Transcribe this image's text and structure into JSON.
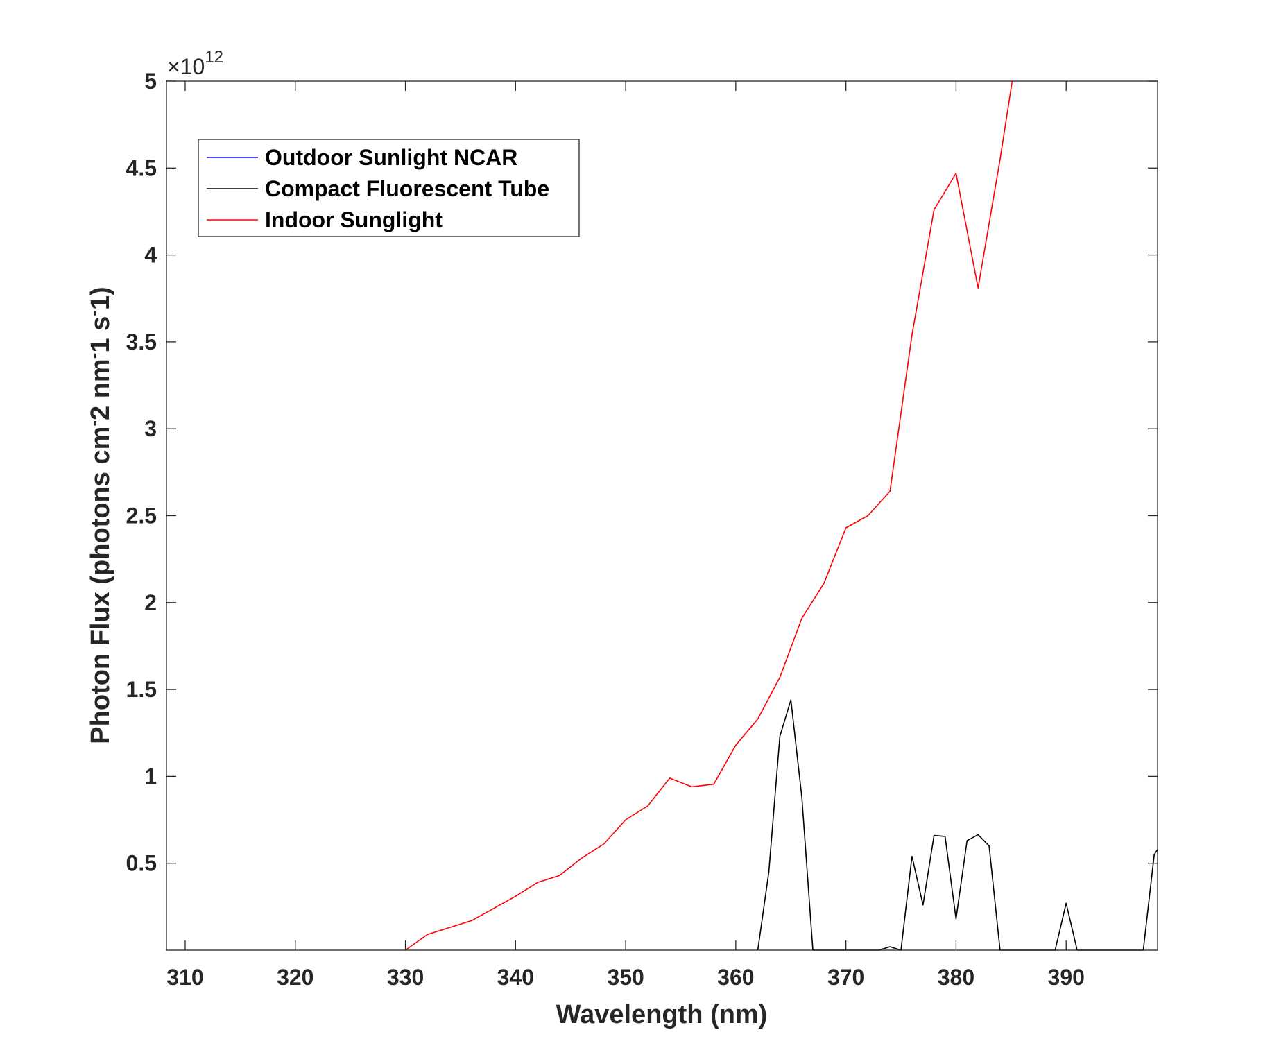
{
  "chart_data": {
    "type": "line",
    "xlabel": "Wavelength (nm)",
    "ylabel": "Photon Flux (photons cm^-2 nm^-1 s^-1)",
    "ylabel_parts": [
      "Photon Flux (photons cm",
      "2 nm",
      "1 s",
      "1)"
    ],
    "ylabel_sup": "-",
    "y_exponent_base": "×10",
    "y_exponent_power": "12",
    "xlim": [
      308.3,
      398.3
    ],
    "ylim": [
      0.0,
      5.0
    ],
    "y_scale_factor": 1000000000000.0,
    "xticks": [
      310,
      320,
      330,
      340,
      350,
      360,
      370,
      380,
      390
    ],
    "xtick_labels": [
      "310",
      "320",
      "330",
      "340",
      "350",
      "360",
      "370",
      "380",
      "390"
    ],
    "yticks": [
      0.5,
      1,
      1.5,
      2,
      2.5,
      3,
      3.5,
      4,
      4.5,
      5
    ],
    "ytick_labels": [
      "0.5",
      "1",
      "1.5",
      "2",
      "2.5",
      "3",
      "3.5",
      "4",
      "4.5",
      "5"
    ],
    "grid": false,
    "legend_position": "top-left",
    "series": [
      {
        "name": "Outdoor Sunlight NCAR",
        "color": "#0000ff",
        "x": [],
        "y": []
      },
      {
        "name": "Compact Fluorescent Tube",
        "color": "#000000",
        "x": [
          362,
          363,
          364,
          365,
          366,
          367,
          373,
          374,
          375,
          376,
          377,
          378,
          379,
          380,
          381,
          382,
          383,
          384,
          389,
          390,
          391,
          397,
          398,
          398.3
        ],
        "y": [
          0.0,
          0.45,
          1.23,
          1.44,
          0.88,
          0.0,
          0.0,
          0.02,
          0.0,
          0.54,
          0.26,
          0.66,
          0.655,
          0.18,
          0.63,
          0.665,
          0.6,
          0.0,
          0.0,
          0.27,
          0.0,
          0.0,
          0.55,
          0.58
        ]
      },
      {
        "name": "Indoor Sunglight",
        "color": "#ff0000",
        "x": [
          330,
          332,
          334,
          336,
          338,
          340,
          342,
          344,
          346,
          348,
          350,
          352,
          354,
          356,
          358,
          360,
          362,
          364,
          366,
          368,
          370,
          372,
          374,
          376,
          378,
          380,
          382,
          384,
          385.1
        ],
        "y": [
          0.0,
          0.09,
          0.13,
          0.17,
          0.24,
          0.31,
          0.39,
          0.43,
          0.53,
          0.61,
          0.75,
          0.83,
          0.99,
          0.94,
          0.955,
          1.18,
          1.33,
          1.57,
          1.91,
          2.11,
          2.43,
          2.5,
          2.64,
          3.54,
          4.26,
          4.47,
          3.81,
          4.55,
          5.0
        ]
      }
    ]
  }
}
